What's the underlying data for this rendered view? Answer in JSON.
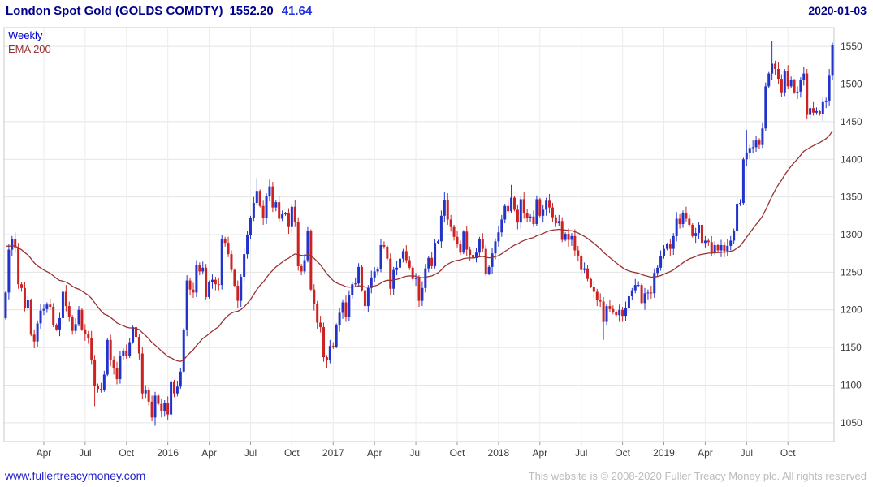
{
  "header": {
    "title": "London Spot Gold (GOLDS COMDTY)",
    "last_price": "1552.20",
    "change": "41.64",
    "date": "2020-01-03"
  },
  "legend": {
    "timeframe": "Weekly",
    "overlay": "EMA 200"
  },
  "footer": {
    "site_link": "www.fullertreacymoney.com",
    "copyright": "This website is © 2008-2020 Fuller Treacy Money plc. All rights reserved"
  },
  "colors": {
    "up_candle": "#2233cc",
    "down_candle": "#cc2222",
    "ema_line": "#993333",
    "title_navy": "#00008b",
    "change_blue": "#2233dd",
    "grid": "#e4e4e4",
    "grid_vertical": "#ececec",
    "plot_border": "#c8c8c8",
    "axis_text": "#3c3c3c",
    "link_blue": "#2222cc",
    "copyright_gray": "#bcbcbc"
  },
  "chart_data": {
    "type": "candlestick",
    "timeframe": "weekly",
    "title": "London Spot Gold (GOLDS COMDTY)",
    "last": 1552.2,
    "change": 41.64,
    "as_of": "2020-01-03",
    "ylim": [
      1025,
      1575
    ],
    "yticks": [
      1050,
      1100,
      1150,
      1200,
      1250,
      1300,
      1350,
      1400,
      1450,
      1500,
      1550
    ],
    "y_axis_side": "right",
    "grid": true,
    "xticks": [
      {
        "i": 12,
        "label": "Apr"
      },
      {
        "i": 25,
        "label": "Jul"
      },
      {
        "i": 38,
        "label": "Oct"
      },
      {
        "i": 51,
        "label": "2016"
      },
      {
        "i": 64,
        "label": "Apr"
      },
      {
        "i": 77,
        "label": "Jul"
      },
      {
        "i": 90,
        "label": "Oct"
      },
      {
        "i": 103,
        "label": "2017"
      },
      {
        "i": 116,
        "label": "Apr"
      },
      {
        "i": 129,
        "label": "Jul"
      },
      {
        "i": 142,
        "label": "Oct"
      },
      {
        "i": 155,
        "label": "2018"
      },
      {
        "i": 168,
        "label": "Apr"
      },
      {
        "i": 181,
        "label": "Jul"
      },
      {
        "i": 194,
        "label": "Oct"
      },
      {
        "i": 207,
        "label": "2019"
      },
      {
        "i": 220,
        "label": "Apr"
      },
      {
        "i": 233,
        "label": "Jul"
      },
      {
        "i": 246,
        "label": "Oct"
      }
    ],
    "first_open": 1189,
    "closes": [
      1223,
      1280,
      1294,
      1283,
      1234,
      1229,
      1202,
      1213,
      1167,
      1158,
      1182,
      1199,
      1201,
      1207,
      1204,
      1180,
      1174,
      1189,
      1224,
      1205,
      1190,
      1172,
      1181,
      1200,
      1174,
      1168,
      1163,
      1134,
      1099,
      1095,
      1094,
      1114,
      1160,
      1134,
      1122,
      1108,
      1139,
      1146,
      1139,
      1157,
      1177,
      1164,
      1142,
      1089,
      1094,
      1078,
      1057,
      1086,
      1075,
      1066,
      1076,
      1061,
      1104,
      1089,
      1098,
      1118,
      1174,
      1239,
      1227,
      1223,
      1260,
      1251,
      1256,
      1217,
      1237,
      1240,
      1234,
      1233,
      1294,
      1289,
      1274,
      1253,
      1232,
      1212,
      1244,
      1274,
      1299,
      1322,
      1342,
      1358,
      1338,
      1322,
      1351,
      1364,
      1336,
      1343,
      1321,
      1327,
      1328,
      1310,
      1337,
      1317,
      1258,
      1251,
      1266,
      1305,
      1227,
      1208,
      1183,
      1177,
      1137,
      1133,
      1152,
      1151,
      1180,
      1196,
      1210,
      1191,
      1220,
      1234,
      1235,
      1257,
      1226,
      1205,
      1229,
      1243,
      1251,
      1254,
      1286,
      1284,
      1268,
      1228,
      1253,
      1256,
      1268,
      1278,
      1266,
      1256,
      1241,
      1242,
      1212,
      1229,
      1255,
      1269,
      1258,
      1289,
      1291,
      1325,
      1346,
      1320,
      1310,
      1297,
      1287,
      1276,
      1304,
      1280,
      1273,
      1269,
      1276,
      1294,
      1281,
      1248,
      1257,
      1275,
      1291,
      1303,
      1320,
      1338,
      1331,
      1349,
      1333,
      1316,
      1347,
      1328,
      1322,
      1324,
      1314,
      1347,
      1325,
      1333,
      1345,
      1336,
      1323,
      1315,
      1318,
      1293,
      1301,
      1293,
      1298,
      1279,
      1271,
      1253,
      1255,
      1241,
      1231,
      1224,
      1213,
      1211,
      1184,
      1205,
      1201,
      1197,
      1193,
      1200,
      1192,
      1202,
      1218,
      1226,
      1233,
      1233,
      1209,
      1222,
      1223,
      1222,
      1249,
      1256,
      1271,
      1281,
      1287,
      1281,
      1298,
      1321,
      1314,
      1329,
      1321,
      1313,
      1298,
      1302,
      1313,
      1289,
      1292,
      1290,
      1276,
      1286,
      1279,
      1286,
      1278,
      1285,
      1292,
      1305,
      1341,
      1342,
      1400,
      1409,
      1415,
      1416,
      1425,
      1419,
      1441,
      1497,
      1514,
      1527,
      1520,
      1507,
      1489,
      1517,
      1497,
      1505,
      1489,
      1490,
      1505,
      1514,
      1459,
      1468,
      1462,
      1464,
      1460,
      1476,
      1478,
      1511,
      1552.2
    ],
    "wick_extremes": {
      "28": {
        "low": 1072
      },
      "46": {
        "low": 1052
      },
      "47": {
        "low": 1046
      },
      "79": {
        "high": 1375
      },
      "101": {
        "low": 1122
      },
      "138": {
        "high": 1357
      },
      "159": {
        "high": 1366
      },
      "188": {
        "low": 1160
      },
      "233": {
        "high": 1439
      },
      "241": {
        "high": 1557
      },
      "260": {
        "high": 1555
      }
    },
    "ema": {
      "label": "EMA 200",
      "period_weeks": 40,
      "seed": 1288,
      "color": "#993333"
    }
  }
}
